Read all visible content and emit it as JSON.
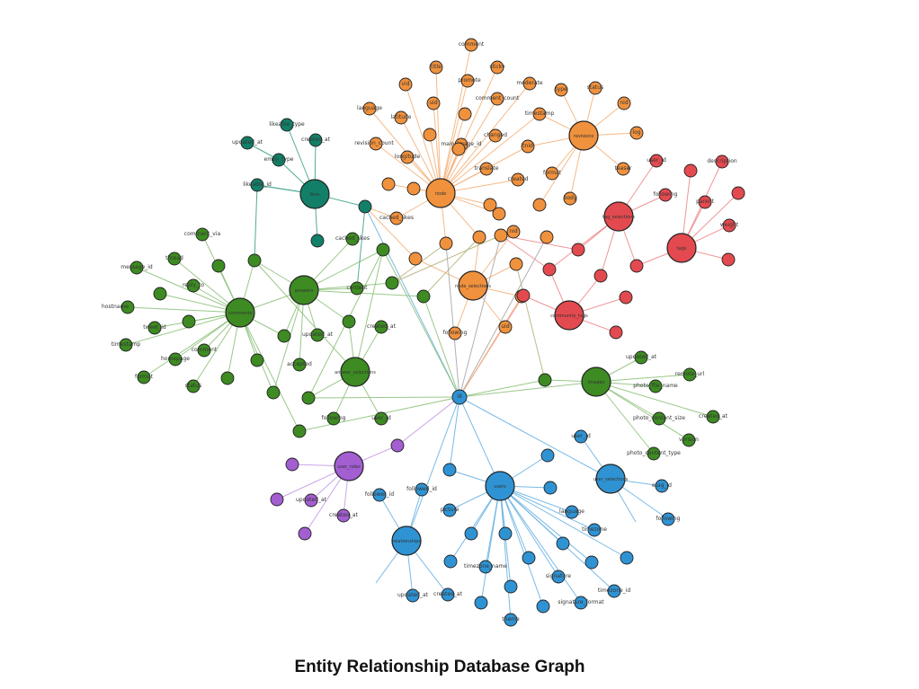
{
  "title": "Entity Relationship Database Graph",
  "palette": {
    "orange": "#f0913d",
    "red": "#e34a4f",
    "green": "#3d8b22",
    "teal": "#128068",
    "blue": "#2f93d3",
    "purple": "#a35ed1",
    "stroke": "#222222"
  },
  "nodes": [
    {
      "id": "node",
      "label": "node",
      "group": "orange",
      "hub": true
    },
    {
      "id": "revisions",
      "label": "revisions",
      "group": "orange",
      "hub": true
    },
    {
      "id": "node_selections",
      "label": "node_selections",
      "group": "orange",
      "hub": true
    },
    {
      "id": "o_comment",
      "label": "comment",
      "group": "orange"
    },
    {
      "id": "o_title",
      "label": "title",
      "group": "orange"
    },
    {
      "id": "o_sticky",
      "label": "sticky",
      "group": "orange"
    },
    {
      "id": "o_promote",
      "label": "promote",
      "group": "orange"
    },
    {
      "id": "o_moderate",
      "label": "moderate",
      "group": "orange"
    },
    {
      "id": "o_vid",
      "label": "vid",
      "group": "orange"
    },
    {
      "id": "o_type",
      "label": "type",
      "group": "orange"
    },
    {
      "id": "o_comment_count",
      "label": "comment_count",
      "group": "orange"
    },
    {
      "id": "o_status",
      "label": "status",
      "group": "orange"
    },
    {
      "id": "o_language",
      "label": "language",
      "group": "orange"
    },
    {
      "id": "o_uid",
      "label": "uid",
      "group": "orange"
    },
    {
      "id": "o_latitude",
      "label": "latitude",
      "group": "orange"
    },
    {
      "id": "o_timestamp",
      "label": "timestamp",
      "group": "orange"
    },
    {
      "id": "o_created",
      "label": "created",
      "group": "orange"
    },
    {
      "id": "o_changed",
      "label": "changed",
      "group": "orange"
    },
    {
      "id": "o_longitude",
      "label": "longitude",
      "group": "orange"
    },
    {
      "id": "o_revision_count",
      "label": "revision_count",
      "group": "orange"
    },
    {
      "id": "o_main_image_id",
      "label": "main_image_id",
      "group": "orange"
    },
    {
      "id": "o_translate",
      "label": "translate",
      "group": "orange"
    },
    {
      "id": "o_tnid",
      "label": "tnid",
      "group": "orange"
    },
    {
      "id": "o_log",
      "label": "log",
      "group": "orange"
    },
    {
      "id": "o_format",
      "label": "format",
      "group": "orange"
    },
    {
      "id": "o_body",
      "label": "body",
      "group": "orange"
    },
    {
      "id": "o_teaser",
      "label": "teaser",
      "group": "orange"
    },
    {
      "id": "o_nid",
      "label": "nid",
      "group": "orange"
    },
    {
      "id": "o_cached_likes",
      "label": "cached_likes",
      "group": "orange"
    },
    {
      "id": "o_following",
      "label": "following",
      "group": "orange"
    },
    {
      "id": "o_uid2",
      "label": "uid",
      "group": "orange"
    },
    {
      "id": "o_nid2",
      "label": "nid",
      "group": "orange"
    },
    {
      "id": "o_x1",
      "label": "",
      "group": "orange"
    },
    {
      "id": "o_x2",
      "label": "",
      "group": "orange"
    },
    {
      "id": "o_x3",
      "label": "",
      "group": "orange"
    },
    {
      "id": "o_x4",
      "label": "",
      "group": "orange"
    },
    {
      "id": "o_x5",
      "label": "",
      "group": "orange"
    },
    {
      "id": "o_x6",
      "label": "",
      "group": "orange"
    },
    {
      "id": "o_x7",
      "label": "",
      "group": "orange"
    },
    {
      "id": "o_x8",
      "label": "",
      "group": "orange"
    },
    {
      "id": "o_x9",
      "label": "",
      "group": "orange"
    },
    {
      "id": "o_x10",
      "label": "",
      "group": "orange"
    },
    {
      "id": "o_x11",
      "label": "",
      "group": "orange"
    },
    {
      "id": "o_x12",
      "label": "",
      "group": "orange"
    },
    {
      "id": "o_x13",
      "label": "",
      "group": "orange"
    },
    {
      "id": "o_x14",
      "label": "",
      "group": "orange"
    },
    {
      "id": "o_x15",
      "label": "",
      "group": "orange"
    },
    {
      "id": "tag_selections",
      "label": "tag_selections",
      "group": "red",
      "hub": true
    },
    {
      "id": "tags",
      "label": "tags",
      "group": "red",
      "hub": true
    },
    {
      "id": "community_tags",
      "label": "community_tags",
      "group": "red",
      "hub": true
    },
    {
      "id": "r_user_id",
      "label": "user_id",
      "group": "red"
    },
    {
      "id": "r_description",
      "label": "description",
      "group": "red"
    },
    {
      "id": "r_following",
      "label": "following",
      "group": "red"
    },
    {
      "id": "r_parent",
      "label": "parent",
      "group": "red"
    },
    {
      "id": "r_weight",
      "label": "weight",
      "group": "red"
    },
    {
      "id": "r_x1",
      "label": "",
      "group": "red"
    },
    {
      "id": "r_x2",
      "label": "",
      "group": "red"
    },
    {
      "id": "r_x3",
      "label": "",
      "group": "red"
    },
    {
      "id": "r_x4",
      "label": "",
      "group": "red"
    },
    {
      "id": "r_x5",
      "label": "",
      "group": "red"
    },
    {
      "id": "r_x6",
      "label": "",
      "group": "red"
    },
    {
      "id": "r_x7",
      "label": "",
      "group": "red"
    },
    {
      "id": "r_x8",
      "label": "",
      "group": "red"
    },
    {
      "id": "r_x9",
      "label": "",
      "group": "red"
    },
    {
      "id": "r_x10",
      "label": "",
      "group": "red"
    },
    {
      "id": "comments",
      "label": "comments",
      "group": "green",
      "hub": true
    },
    {
      "id": "answers",
      "label": "answers",
      "group": "green",
      "hub": true
    },
    {
      "id": "answer_selections",
      "label": "answer_selections",
      "group": "green",
      "hub": true
    },
    {
      "id": "images",
      "label": "images",
      "group": "green",
      "hub": true
    },
    {
      "id": "g_comment_via",
      "label": "comment_via",
      "group": "green"
    },
    {
      "id": "g_thread",
      "label": "thread",
      "group": "green"
    },
    {
      "id": "g_message_id",
      "label": "message_id",
      "group": "green"
    },
    {
      "id": "g_reply_to",
      "label": "reply_to",
      "group": "green"
    },
    {
      "id": "g_hostname",
      "label": "hostname",
      "group": "green"
    },
    {
      "id": "g_tweet_id",
      "label": "tweet_id",
      "group": "green"
    },
    {
      "id": "g_timestamp",
      "label": "timestamp",
      "group": "green"
    },
    {
      "id": "g_homepage",
      "label": "homepage",
      "group": "green"
    },
    {
      "id": "g_comment",
      "label": "comment",
      "group": "green"
    },
    {
      "id": "g_format",
      "label": "format",
      "group": "green"
    },
    {
      "id": "g_status",
      "label": "status",
      "group": "green"
    },
    {
      "id": "g_content",
      "label": "content",
      "group": "green"
    },
    {
      "id": "g_cached_likes",
      "label": "cached_likes",
      "group": "green"
    },
    {
      "id": "g_created_at",
      "label": "created_at",
      "group": "green"
    },
    {
      "id": "g_updated_at",
      "label": "updated_at",
      "group": "green"
    },
    {
      "id": "g_accepted",
      "label": "accepted",
      "group": "green"
    },
    {
      "id": "g_following",
      "label": "following",
      "group": "green"
    },
    {
      "id": "g_user_id",
      "label": "user_id",
      "group": "green"
    },
    {
      "id": "g_updated_at2",
      "label": "updated_at",
      "group": "green"
    },
    {
      "id": "g_remote_url",
      "label": "remote_url",
      "group": "green"
    },
    {
      "id": "g_photo_file_name",
      "label": "photo_file_name",
      "group": "green"
    },
    {
      "id": "g_photo_content_size",
      "label": "photo_content_size",
      "group": "green"
    },
    {
      "id": "g_created_at2",
      "label": "created_at",
      "group": "green"
    },
    {
      "id": "g_photo_content_type",
      "label": "photo_content_type",
      "group": "green"
    },
    {
      "id": "g_version",
      "label": "version",
      "group": "green"
    },
    {
      "id": "g_x1",
      "label": "",
      "group": "green"
    },
    {
      "id": "g_x2",
      "label": "",
      "group": "green"
    },
    {
      "id": "g_x3",
      "label": "",
      "group": "green"
    },
    {
      "id": "g_x4",
      "label": "",
      "group": "green"
    },
    {
      "id": "g_x5",
      "label": "",
      "group": "green"
    },
    {
      "id": "g_x6",
      "label": "",
      "group": "green"
    },
    {
      "id": "g_x7",
      "label": "",
      "group": "green"
    },
    {
      "id": "g_x8",
      "label": "",
      "group": "green"
    },
    {
      "id": "g_x9",
      "label": "",
      "group": "green"
    },
    {
      "id": "g_x10",
      "label": "",
      "group": "green"
    },
    {
      "id": "g_x11",
      "label": "",
      "group": "green"
    },
    {
      "id": "g_x12",
      "label": "",
      "group": "green"
    },
    {
      "id": "g_x13",
      "label": "",
      "group": "green"
    },
    {
      "id": "g_x14",
      "label": "",
      "group": "green"
    },
    {
      "id": "g_x15",
      "label": "",
      "group": "green"
    },
    {
      "id": "likes",
      "label": "likes",
      "group": "teal",
      "hub": true
    },
    {
      "id": "t_likeable_type",
      "label": "likeable_type",
      "group": "teal"
    },
    {
      "id": "t_updated_at",
      "label": "updated_at",
      "group": "teal"
    },
    {
      "id": "t_created_at",
      "label": "created_at",
      "group": "teal"
    },
    {
      "id": "t_emoji_type",
      "label": "emoji_type",
      "group": "teal"
    },
    {
      "id": "t_likeable_id",
      "label": "likeable_id",
      "group": "teal"
    },
    {
      "id": "t_x1",
      "label": "",
      "group": "teal"
    },
    {
      "id": "t_x2",
      "label": "",
      "group": "teal"
    },
    {
      "id": "users",
      "label": "users",
      "group": "blue",
      "hub": true
    },
    {
      "id": "user_selections",
      "label": "user_selections",
      "group": "blue",
      "hub": true
    },
    {
      "id": "relationships",
      "label": "relationships",
      "group": "blue",
      "hub": true
    },
    {
      "id": "b_id",
      "label": "id",
      "group": "blue"
    },
    {
      "id": "b_user_id",
      "label": "user_id",
      "group": "blue"
    },
    {
      "id": "b_follower_id",
      "label": "follower_id",
      "group": "blue"
    },
    {
      "id": "b_followed_id",
      "label": "followed_id",
      "group": "blue"
    },
    {
      "id": "b_picture",
      "label": "picture",
      "group": "blue"
    },
    {
      "id": "b_language",
      "label": "language",
      "group": "blue"
    },
    {
      "id": "b_timezone",
      "label": "timezone",
      "group": "blue"
    },
    {
      "id": "b_timezone_name",
      "label": "timezone_name",
      "group": "blue"
    },
    {
      "id": "b_signature",
      "label": "signature",
      "group": "blue"
    },
    {
      "id": "b_signature_format",
      "label": "signature_format",
      "group": "blue"
    },
    {
      "id": "b_timezone_id",
      "label": "timezone_id",
      "group": "blue"
    },
    {
      "id": "b_theme",
      "label": "theme",
      "group": "blue"
    },
    {
      "id": "b_created_at",
      "label": "created_at",
      "group": "blue"
    },
    {
      "id": "b_updated_at",
      "label": "updated_at",
      "group": "blue"
    },
    {
      "id": "b_etag_id",
      "label": "etag_id",
      "group": "blue"
    },
    {
      "id": "b_following",
      "label": "following",
      "group": "blue"
    },
    {
      "id": "b_x1",
      "label": "",
      "group": "blue"
    },
    {
      "id": "b_x2",
      "label": "",
      "group": "blue"
    },
    {
      "id": "b_x3",
      "label": "",
      "group": "blue"
    },
    {
      "id": "b_x4",
      "label": "",
      "group": "blue"
    },
    {
      "id": "b_x5",
      "label": "",
      "group": "blue"
    },
    {
      "id": "b_x6",
      "label": "",
      "group": "blue"
    },
    {
      "id": "b_x7",
      "label": "",
      "group": "blue"
    },
    {
      "id": "b_x8",
      "label": "",
      "group": "blue"
    },
    {
      "id": "b_x9",
      "label": "",
      "group": "blue"
    },
    {
      "id": "b_x10",
      "label": "",
      "group": "blue"
    },
    {
      "id": "b_x11",
      "label": "",
      "group": "blue"
    },
    {
      "id": "b_x12",
      "label": "",
      "group": "blue"
    },
    {
      "id": "b_x13",
      "label": "",
      "group": "blue"
    },
    {
      "id": "user_roles",
      "label": "user_roles",
      "group": "purple",
      "hub": true
    },
    {
      "id": "p_updated_at",
      "label": "updated_at",
      "group": "purple"
    },
    {
      "id": "p_created_at",
      "label": "created_at",
      "group": "purple"
    },
    {
      "id": "p_x1",
      "label": "",
      "group": "purple"
    },
    {
      "id": "p_x2",
      "label": "",
      "group": "purple"
    },
    {
      "id": "p_x3",
      "label": "",
      "group": "purple"
    },
    {
      "id": "p_x4",
      "label": "",
      "group": "purple"
    }
  ]
}
